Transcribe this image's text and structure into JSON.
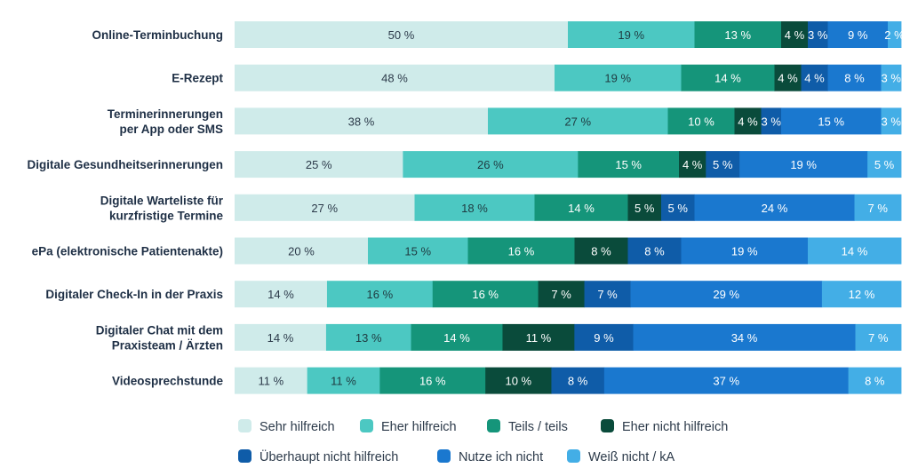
{
  "chart_data": {
    "type": "bar",
    "orientation": "horizontal",
    "stacked": true,
    "percent_suffix": " %",
    "categories": [
      [
        "Online-Terminbuchung"
      ],
      [
        "E-Rezept"
      ],
      [
        "Terminerinnerungen",
        "per App oder SMS"
      ],
      [
        "Digitale Gesundheitserinnerungen"
      ],
      [
        "Digitale Warteliste für",
        "kurzfristige Termine"
      ],
      [
        "ePa (elektronische Patientenakte)"
      ],
      [
        "Digitaler Check-In in der Praxis"
      ],
      [
        "Digitaler Chat mit dem",
        "Praxisteam / Ärzten"
      ],
      [
        "Videosprechstunde"
      ]
    ],
    "series": [
      {
        "name": "Sehr hilfreich",
        "color": "#cfebea",
        "text_color": "#2c3a4a",
        "values": [
          50,
          48,
          38,
          25,
          27,
          20,
          14,
          14,
          11
        ]
      },
      {
        "name": "Eher hilfreich",
        "color": "#4cc8c2",
        "text_color": "#1f3a40",
        "values": [
          19,
          19,
          27,
          26,
          18,
          15,
          16,
          13,
          11
        ]
      },
      {
        "name": "Teils / teils",
        "color": "#15957a",
        "text_color": "#ffffff",
        "values": [
          13,
          14,
          10,
          15,
          14,
          16,
          16,
          14,
          16
        ]
      },
      {
        "name": "Eher nicht hilfreich",
        "color": "#0a4b3b",
        "text_color": "#ffffff",
        "values": [
          4,
          4,
          4,
          4,
          5,
          8,
          7,
          11,
          10
        ]
      },
      {
        "name": "Überhaupt nicht hilfreich",
        "color": "#0f5ca8",
        "text_color": "#ffffff",
        "values": [
          3,
          4,
          3,
          5,
          5,
          8,
          7,
          9,
          8
        ]
      },
      {
        "name": "Nutze ich nicht",
        "color": "#1a78cf",
        "text_color": "#ffffff",
        "values": [
          9,
          8,
          15,
          19,
          24,
          19,
          29,
          34,
          37
        ]
      },
      {
        "name": "Weiß nicht / kA",
        "color": "#43aee6",
        "text_color": "#ffffff",
        "values": [
          2,
          3,
          3,
          5,
          7,
          14,
          12,
          7,
          8
        ]
      }
    ],
    "legend_position": "bottom",
    "grid": false
  }
}
